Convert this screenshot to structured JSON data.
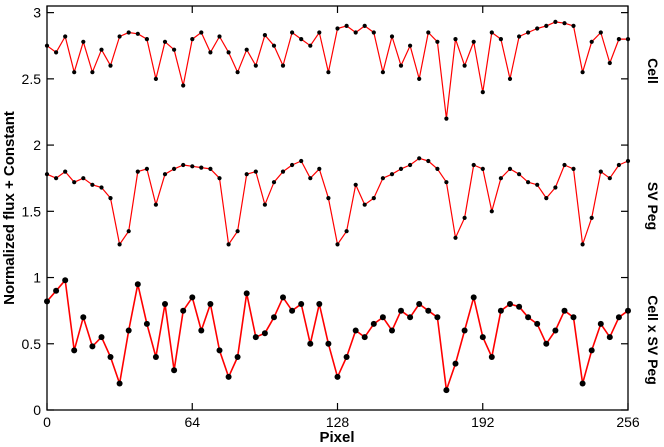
{
  "chart_data": {
    "type": "line",
    "title": "",
    "xlabel": "Pixel",
    "ylabel": "Normalized flux + Constant",
    "xlim": [
      0,
      256
    ],
    "ylim": [
      0,
      3.05
    ],
    "xticks": [
      "0",
      "64",
      "128",
      "192",
      "256"
    ],
    "yticks": [
      "0",
      "0.5",
      "1",
      "1.5",
      "2",
      "2.5",
      "3"
    ],
    "grid": false,
    "legend": "none",
    "line_color": "#ff0000",
    "marker_color": "#000000",
    "series": [
      {
        "name": "Cell",
        "x": [
          0,
          4,
          8,
          12,
          16,
          20,
          24,
          28,
          32,
          36,
          40,
          44,
          48,
          52,
          56,
          60,
          64,
          68,
          72,
          76,
          80,
          84,
          88,
          92,
          96,
          100,
          104,
          108,
          112,
          116,
          120,
          124,
          128,
          132,
          136,
          140,
          144,
          148,
          152,
          156,
          160,
          164,
          168,
          172,
          176,
          180,
          184,
          188,
          192,
          196,
          200,
          204,
          208,
          212,
          216,
          220,
          224,
          228,
          232,
          236,
          240,
          244,
          248,
          252,
          256
        ],
        "y": [
          2.75,
          2.7,
          2.82,
          2.55,
          2.78,
          2.55,
          2.72,
          2.6,
          2.82,
          2.85,
          2.84,
          2.8,
          2.5,
          2.78,
          2.72,
          2.45,
          2.8,
          2.85,
          2.7,
          2.82,
          2.7,
          2.55,
          2.72,
          2.6,
          2.83,
          2.75,
          2.6,
          2.85,
          2.8,
          2.75,
          2.85,
          2.55,
          2.88,
          2.9,
          2.85,
          2.9,
          2.85,
          2.55,
          2.82,
          2.6,
          2.75,
          2.5,
          2.85,
          2.78,
          2.2,
          2.8,
          2.6,
          2.78,
          2.4,
          2.85,
          2.8,
          2.5,
          2.82,
          2.85,
          2.88,
          2.9,
          2.93,
          2.92,
          2.9,
          2.55,
          2.78,
          2.85,
          2.62,
          2.8,
          2.8
        ]
      },
      {
        "name": "SV Peg",
        "x": [
          0,
          4,
          8,
          12,
          16,
          20,
          24,
          28,
          32,
          36,
          40,
          44,
          48,
          52,
          56,
          60,
          64,
          68,
          72,
          76,
          80,
          84,
          88,
          92,
          96,
          100,
          104,
          108,
          112,
          116,
          120,
          124,
          128,
          132,
          136,
          140,
          144,
          148,
          152,
          156,
          160,
          164,
          168,
          172,
          176,
          180,
          184,
          188,
          192,
          196,
          200,
          204,
          208,
          212,
          216,
          220,
          224,
          228,
          232,
          236,
          240,
          244,
          248,
          252,
          256
        ],
        "y": [
          1.78,
          1.75,
          1.8,
          1.72,
          1.75,
          1.7,
          1.68,
          1.6,
          1.25,
          1.35,
          1.8,
          1.82,
          1.55,
          1.78,
          1.82,
          1.85,
          1.84,
          1.83,
          1.82,
          1.75,
          1.25,
          1.35,
          1.78,
          1.8,
          1.55,
          1.72,
          1.8,
          1.85,
          1.88,
          1.75,
          1.82,
          1.6,
          1.25,
          1.35,
          1.7,
          1.55,
          1.6,
          1.75,
          1.78,
          1.82,
          1.85,
          1.9,
          1.88,
          1.82,
          1.72,
          1.3,
          1.45,
          1.85,
          1.82,
          1.5,
          1.75,
          1.82,
          1.78,
          1.72,
          1.7,
          1.6,
          1.68,
          1.85,
          1.82,
          1.25,
          1.45,
          1.8,
          1.75,
          1.85,
          1.88
        ]
      },
      {
        "name": "Cell x SV Peg",
        "x": [
          0,
          4,
          8,
          12,
          16,
          20,
          24,
          28,
          32,
          36,
          40,
          44,
          48,
          52,
          56,
          60,
          64,
          68,
          72,
          76,
          80,
          84,
          88,
          92,
          96,
          100,
          104,
          108,
          112,
          116,
          120,
          124,
          128,
          132,
          136,
          140,
          144,
          148,
          152,
          156,
          160,
          164,
          168,
          172,
          176,
          180,
          184,
          188,
          192,
          196,
          200,
          204,
          208,
          212,
          216,
          220,
          224,
          228,
          232,
          236,
          240,
          244,
          248,
          252,
          256
        ],
        "y": [
          0.82,
          0.9,
          0.98,
          0.45,
          0.7,
          0.48,
          0.55,
          0.4,
          0.2,
          0.6,
          0.95,
          0.65,
          0.4,
          0.8,
          0.3,
          0.75,
          0.85,
          0.6,
          0.8,
          0.45,
          0.25,
          0.4,
          0.88,
          0.55,
          0.58,
          0.7,
          0.85,
          0.75,
          0.8,
          0.5,
          0.8,
          0.5,
          0.25,
          0.4,
          0.6,
          0.55,
          0.65,
          0.7,
          0.6,
          0.75,
          0.7,
          0.8,
          0.75,
          0.7,
          0.15,
          0.35,
          0.6,
          0.85,
          0.55,
          0.4,
          0.75,
          0.8,
          0.78,
          0.7,
          0.65,
          0.5,
          0.6,
          0.75,
          0.7,
          0.2,
          0.45,
          0.65,
          0.55,
          0.7,
          0.75
        ]
      }
    ]
  }
}
